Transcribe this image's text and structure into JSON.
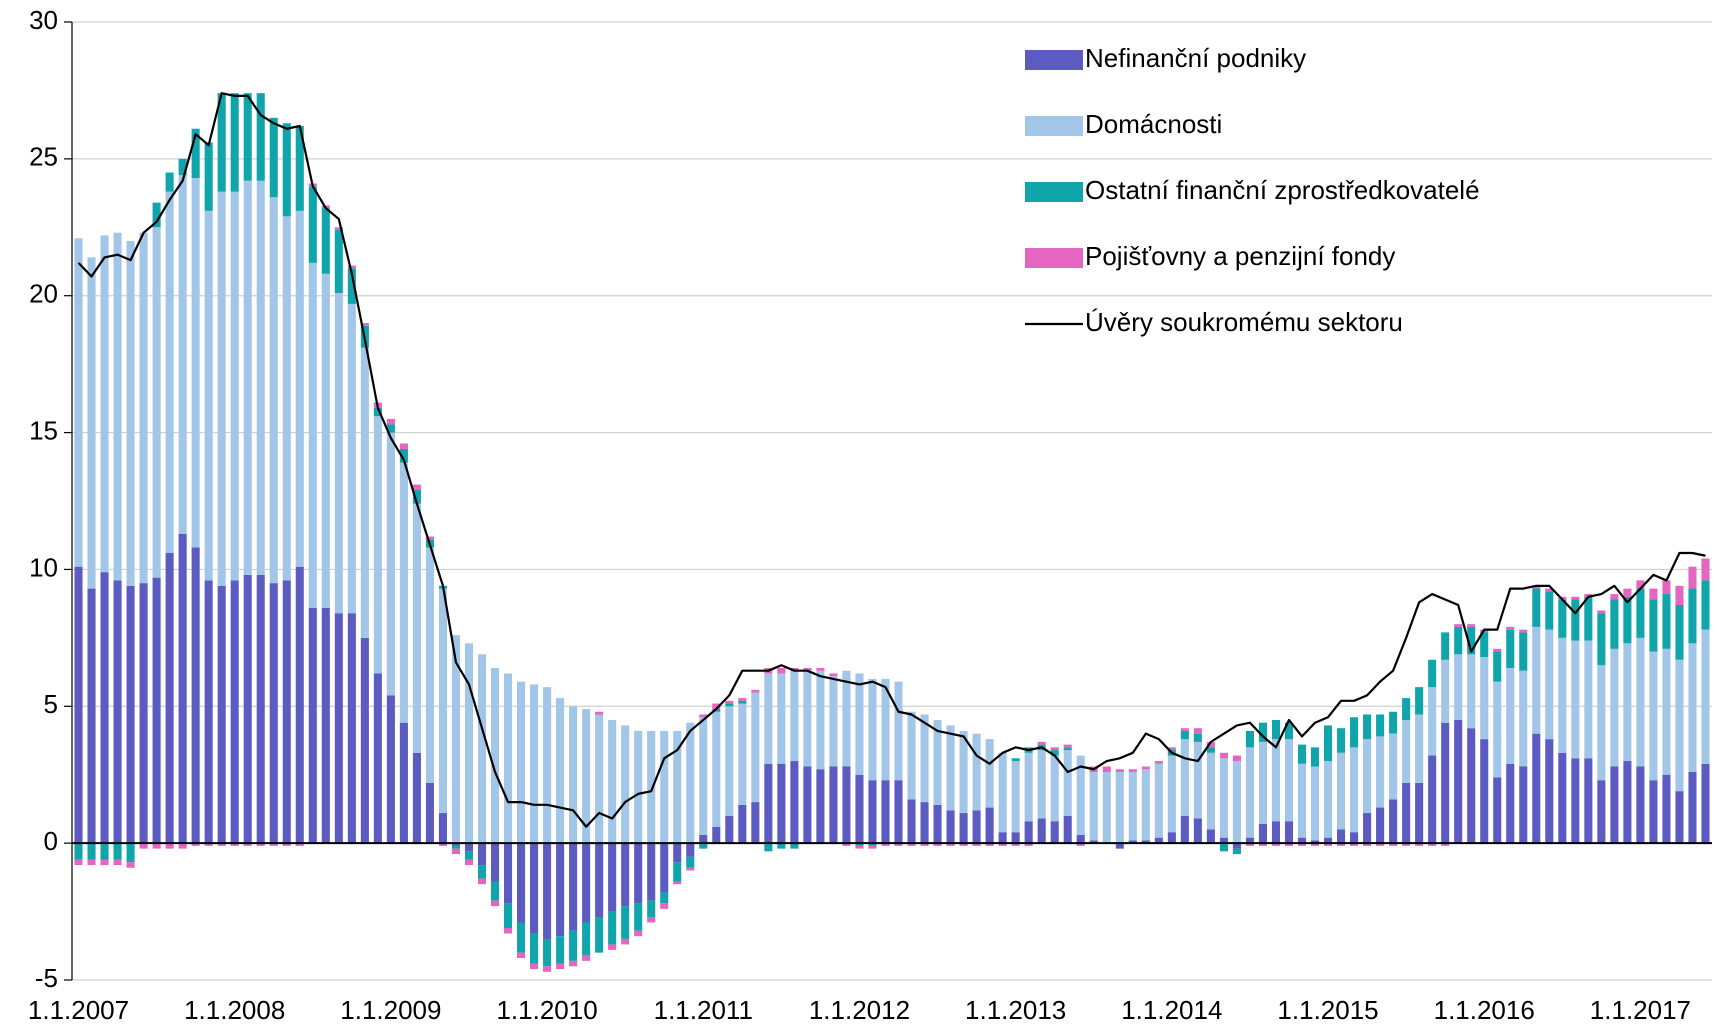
{
  "chart_data": {
    "type": "bar",
    "stacked": true,
    "categories": [
      "1.1.2007",
      null,
      null,
      null,
      null,
      null,
      null,
      null,
      null,
      null,
      null,
      null,
      "1.1.2008",
      null,
      null,
      null,
      null,
      null,
      null,
      null,
      null,
      null,
      null,
      null,
      "1.1.2009",
      null,
      null,
      null,
      null,
      null,
      null,
      null,
      null,
      null,
      null,
      null,
      "1.1.2010",
      null,
      null,
      null,
      null,
      null,
      null,
      null,
      null,
      null,
      null,
      null,
      "1.1.2011",
      null,
      null,
      null,
      null,
      null,
      null,
      null,
      null,
      null,
      null,
      null,
      "1.1.2012",
      null,
      null,
      null,
      null,
      null,
      null,
      null,
      null,
      null,
      null,
      null,
      "1.1.2013",
      null,
      null,
      null,
      null,
      null,
      null,
      null,
      null,
      null,
      null,
      null,
      "1.1.2014",
      null,
      null,
      null,
      null,
      null,
      null,
      null,
      null,
      null,
      null,
      null,
      "1.1.2015",
      null,
      null,
      null,
      null,
      null,
      null,
      null,
      null,
      null,
      null,
      null,
      "1.1.2016",
      null,
      null,
      null,
      null,
      null,
      null,
      null,
      null,
      null,
      null,
      null,
      "1.1.2017",
      null,
      null,
      null,
      null,
      null
    ],
    "series": [
      {
        "name": "Nefinanční podniky",
        "color": "#5b5bc2",
        "values": [
          10.1,
          9.3,
          9.9,
          9.6,
          9.4,
          9.5,
          9.7,
          10.6,
          11.3,
          10.8,
          9.6,
          9.4,
          9.6,
          9.8,
          9.8,
          9.5,
          9.6,
          10.1,
          8.6,
          8.6,
          8.4,
          8.4,
          7.5,
          6.2,
          5.4,
          4.4,
          3.3,
          2.2,
          1.1,
          -0.1,
          -0.3,
          -0.8,
          -1.4,
          -2.2,
          -2.9,
          -3.3,
          -3.5,
          -3.4,
          -3.2,
          -2.9,
          -2.7,
          -2.5,
          -2.3,
          -2.2,
          -2.1,
          -1.8,
          -0.7,
          -0.5,
          0.3,
          0.6,
          1.0,
          1.4,
          1.5,
          2.9,
          2.9,
          3.0,
          2.8,
          2.7,
          2.8,
          2.8,
          2.5,
          2.3,
          2.3,
          2.3,
          1.6,
          1.5,
          1.4,
          1.2,
          1.1,
          1.2,
          1.3,
          0.4,
          0.4,
          0.8,
          0.9,
          0.8,
          1.0,
          0.3,
          0.1,
          0.0,
          -0.2,
          0.1,
          0.1,
          0.2,
          0.4,
          1.0,
          0.9,
          0.5,
          0.2,
          -0.2,
          0.2,
          0.7,
          0.8,
          0.8,
          0.2,
          0.1,
          0.2,
          0.5,
          0.4,
          1.1,
          1.3,
          1.6,
          2.2,
          2.2,
          3.2,
          4.4,
          4.5,
          4.2,
          3.8,
          2.4,
          2.9,
          2.8,
          4.0,
          3.8,
          3.3,
          3.1,
          3.1,
          2.3,
          2.8,
          3.0,
          2.8,
          2.3,
          2.5,
          1.9,
          2.6,
          2.9
        ]
      },
      {
        "name": "Domácnosti",
        "color": "#a2c6e8",
        "values": [
          12.0,
          12.1,
          12.3,
          12.7,
          12.6,
          12.8,
          12.8,
          13.2,
          13.1,
          13.5,
          13.5,
          14.4,
          14.2,
          14.4,
          14.4,
          14.1,
          13.3,
          13.0,
          12.6,
          12.2,
          11.7,
          11.3,
          10.6,
          9.4,
          9.6,
          9.5,
          9.1,
          8.6,
          8.2,
          7.6,
          7.3,
          6.9,
          6.4,
          6.2,
          5.9,
          5.8,
          5.7,
          5.3,
          5.0,
          4.9,
          4.7,
          4.5,
          4.3,
          4.1,
          4.1,
          4.1,
          4.1,
          4.4,
          4.3,
          4.2,
          4.0,
          3.7,
          4.0,
          3.3,
          3.3,
          3.3,
          3.5,
          3.6,
          3.3,
          3.5,
          3.7,
          3.7,
          3.7,
          3.6,
          3.2,
          3.2,
          3.1,
          3.1,
          3.0,
          2.8,
          2.5,
          2.9,
          2.6,
          2.5,
          2.5,
          2.4,
          2.4,
          2.9,
          2.5,
          2.6,
          2.6,
          2.5,
          2.6,
          2.7,
          2.8,
          2.8,
          2.8,
          2.8,
          2.9,
          3.0,
          3.3,
          3.0,
          3.0,
          3.0,
          2.7,
          2.7,
          2.8,
          2.8,
          3.1,
          2.7,
          2.6,
          2.4,
          2.3,
          2.5,
          2.5,
          2.3,
          2.4,
          2.7,
          3.0,
          3.5,
          3.5,
          3.5,
          3.9,
          4.0,
          4.2,
          4.3,
          4.3,
          4.2,
          4.3,
          4.3,
          4.7,
          4.7,
          4.6,
          4.8,
          4.7,
          4.9
        ]
      },
      {
        "name": "Ostatní finanční zprostředkovatelé",
        "color": "#10a5aa",
        "values": [
          -0.6,
          -0.6,
          -0.6,
          -0.6,
          -0.7,
          0.0,
          0.9,
          0.7,
          0.6,
          1.8,
          2.5,
          3.6,
          3.6,
          3.2,
          3.2,
          2.9,
          3.4,
          3.1,
          2.8,
          2.4,
          2.3,
          1.3,
          0.8,
          0.3,
          0.3,
          0.5,
          0.5,
          0.3,
          0.1,
          -0.1,
          -0.3,
          -0.5,
          -0.7,
          -0.9,
          -1.1,
          -1.1,
          -1.0,
          -1.0,
          -1.1,
          -1.2,
          -1.3,
          -1.2,
          -1.2,
          -1.0,
          -0.6,
          -0.4,
          -0.7,
          -0.4,
          -0.2,
          0.1,
          0.1,
          0.1,
          0.0,
          -0.3,
          -0.2,
          -0.2,
          0.0,
          0.0,
          0.0,
          0.0,
          -0.1,
          -0.1,
          0,
          0,
          0,
          0,
          0,
          0,
          0,
          0,
          0,
          0,
          0.1,
          0.2,
          0.2,
          0.2,
          0.1,
          0,
          0,
          0,
          0,
          0,
          0,
          0,
          0.2,
          0.3,
          0.3,
          0.2,
          -0.3,
          -0.2,
          0.6,
          0.7,
          0.7,
          0.6,
          0.7,
          0.7,
          1.3,
          0.9,
          1.1,
          0.9,
          0.8,
          0.8,
          0.8,
          1.0,
          1.0,
          1.0,
          1.0,
          1.0,
          0.9,
          1.1,
          1.4,
          1.4,
          1.4,
          1.4,
          1.4,
          1.5,
          1.6,
          1.9,
          1.8,
          1.7,
          1.8,
          1.9,
          2.0,
          2.0,
          2.0,
          1.8
        ]
      },
      {
        "name": "Pojišťovny a penzijní fondy",
        "color": "#e466c0",
        "values": [
          -0.2,
          -0.2,
          -0.2,
          -0.2,
          -0.2,
          -0.2,
          -0.2,
          -0.2,
          -0.2,
          -0.1,
          -0.1,
          -0.1,
          -0.1,
          -0.1,
          -0.1,
          -0.1,
          -0.1,
          -0.1,
          0.1,
          0.1,
          0.1,
          0.1,
          0.1,
          0.2,
          0.2,
          0.2,
          0.2,
          0.1,
          -0.1,
          -0.2,
          -0.2,
          -0.2,
          -0.2,
          -0.2,
          -0.2,
          -0.2,
          -0.2,
          -0.2,
          -0.2,
          -0.2,
          0.1,
          -0.2,
          -0.2,
          -0.2,
          -0.2,
          -0.2,
          -0.1,
          -0.1,
          0.1,
          0.2,
          0.1,
          0.1,
          0.1,
          0.2,
          0.2,
          0.1,
          0.1,
          0.1,
          0.1,
          -0.1,
          -0.1,
          -0.1,
          -0.1,
          -0.1,
          -0.1,
          -0.1,
          -0.1,
          -0.1,
          -0.1,
          -0.1,
          -0.1,
          -0.1,
          -0.1,
          -0.1,
          0.1,
          0.1,
          0.1,
          -0.1,
          0.2,
          0.2,
          0.1,
          0.1,
          0.1,
          0.1,
          0.1,
          0.1,
          0.2,
          0.2,
          0.2,
          0.2,
          -0.1,
          -0.1,
          -0.1,
          -0.1,
          -0.1,
          -0.1,
          -0.1,
          -0.1,
          -0.1,
          -0.1,
          -0.1,
          -0.1,
          -0.1,
          -0.1,
          -0.1,
          -0.1,
          0.1,
          0.1,
          0.1,
          0.1,
          0.1,
          0.1,
          0.1,
          0.1,
          0.1,
          0.1,
          0.1,
          0.1,
          0.2,
          0.3,
          0.3,
          0.4,
          0.5,
          0.7,
          0.8,
          0.8
        ]
      },
      {
        "name": "Úvěry soukromému sektoru",
        "color": "#000000",
        "type": "line",
        "values": [
          21.2,
          20.7,
          21.4,
          21.5,
          21.3,
          22.3,
          22.7,
          23.5,
          24.2,
          25.9,
          25.5,
          27.4,
          27.3,
          27.3,
          26.6,
          26.3,
          26.1,
          26.2,
          24.0,
          23.2,
          22.8,
          20.8,
          18.4,
          15.9,
          14.8,
          14.0,
          12.4,
          10.9,
          9.4,
          6.6,
          5.8,
          4.2,
          2.6,
          1.5,
          1.5,
          1.4,
          1.4,
          1.3,
          1.2,
          0.6,
          1.1,
          0.9,
          1.5,
          1.8,
          1.9,
          3.1,
          3.4,
          4.1,
          4.5,
          4.9,
          5.4,
          6.3,
          6.3,
          6.3,
          6.5,
          6.3,
          6.3,
          6.1,
          6.0,
          5.9,
          5.8,
          5.9,
          5.7,
          4.8,
          4.7,
          4.4,
          4.1,
          4.0,
          3.9,
          3.2,
          2.9,
          3.3,
          3.5,
          3.4,
          3.5,
          3.2,
          2.6,
          2.8,
          2.7,
          3.0,
          3.1,
          3.3,
          4.0,
          3.8,
          3.3,
          3.1,
          3.0,
          3.7,
          4.0,
          4.3,
          4.4,
          3.9,
          3.5,
          4.5,
          3.9,
          4.4,
          4.6,
          5.2,
          5.2,
          5.4,
          5.9,
          6.3,
          7.5,
          8.8,
          9.1,
          8.9,
          8.7,
          7.0,
          7.8,
          7.8,
          9.3,
          9.3,
          9.4,
          9.4,
          8.9,
          8.4,
          9.0,
          9.1,
          9.4,
          8.8,
          9.3,
          9.8,
          9.6,
          10.6,
          10.6,
          10.5
        ]
      }
    ],
    "ylim": [
      -5,
      30
    ],
    "yticks": [
      -5,
      0,
      5,
      10,
      15,
      20,
      25,
      30
    ],
    "grid": true
  }
}
